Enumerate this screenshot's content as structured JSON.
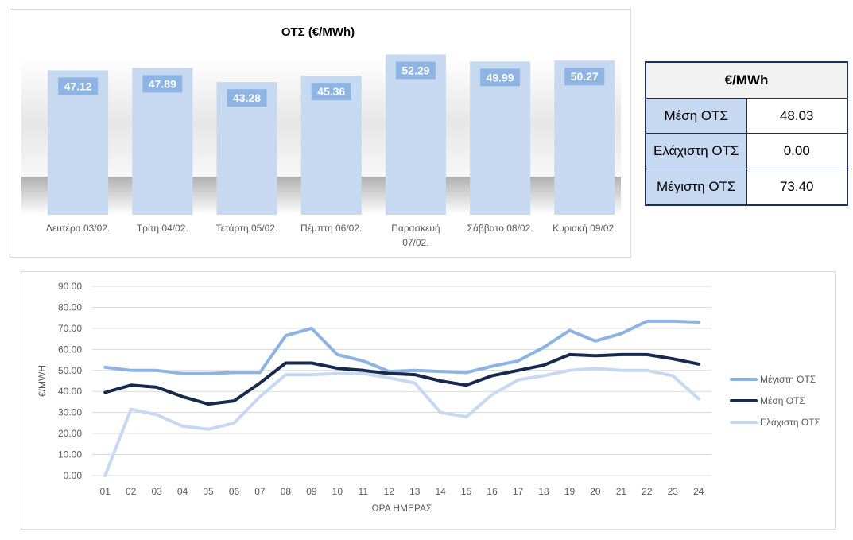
{
  "chart_data": [
    {
      "type": "bar",
      "title": "ΟΤΣ (€/MWh)",
      "categories": [
        "Δευτέρα 03/02.",
        "Τρίτη 04/02.",
        "Τετάρτη 05/02.",
        "Πέμπτη 06/02.",
        "Παρασκευή 07/02.",
        "Σάββατο 08/02.",
        "Κυριακή 09/02."
      ],
      "values": [
        47.12,
        47.89,
        43.28,
        45.36,
        52.29,
        49.99,
        50.27
      ],
      "value_labels": [
        "47.12",
        "47.89",
        "43.28",
        "45.36",
        "52.29",
        "49.99",
        "50.27"
      ],
      "ylim": [
        0,
        55
      ],
      "colors": {
        "bar": "#c6d9f1",
        "label_bg": "#8eb4e3",
        "label_text": "#ffffff"
      }
    },
    {
      "type": "line",
      "xlabel": "ΩΡΑ ΗΜΕΡΑΣ",
      "ylabel": "€/MWH",
      "x": [
        "01",
        "02",
        "03",
        "04",
        "05",
        "06",
        "07",
        "08",
        "09",
        "10",
        "11",
        "12",
        "13",
        "14",
        "15",
        "16",
        "17",
        "18",
        "19",
        "20",
        "21",
        "22",
        "23",
        "24"
      ],
      "ylim": [
        0,
        90
      ],
      "yticks": [
        "0.00",
        "10.00",
        "20.00",
        "30.00",
        "40.00",
        "50.00",
        "60.00",
        "70.00",
        "80.00",
        "90.00"
      ],
      "grid": true,
      "legend_position": "right",
      "series": [
        {
          "name": "Μέγιστη ΟΤΣ",
          "color": "#8db3e2",
          "values": [
            51.5,
            50,
            50,
            48.5,
            48.5,
            49,
            49,
            66.5,
            70,
            57.5,
            54.5,
            49.5,
            50,
            49.5,
            49,
            52,
            54.5,
            61,
            69,
            64,
            67.5,
            73.4,
            73.4,
            73
          ]
        },
        {
          "name": "Μέση ΟΤΣ",
          "color": "#17294d",
          "values": [
            39.5,
            43,
            42,
            37.5,
            34,
            35.5,
            44,
            53.5,
            53.5,
            51,
            50,
            48.5,
            48,
            45,
            43,
            47.5,
            50,
            52.5,
            57.5,
            57,
            57.5,
            57.5,
            55.5,
            53
          ]
        },
        {
          "name": "Ελάχιστη ΟΤΣ",
          "color": "#c6d9f1",
          "values": [
            0,
            31.5,
            29,
            23.5,
            22,
            25,
            37.5,
            48,
            48,
            48.5,
            48.5,
            46.5,
            44,
            30,
            28,
            38.5,
            45.5,
            47.5,
            50,
            51,
            50,
            50,
            47.5,
            36.5
          ]
        }
      ]
    }
  ],
  "stats_table": {
    "header": "€/MWh",
    "rows": [
      {
        "label": "Μέση ΟΤΣ",
        "value": "48.03"
      },
      {
        "label": "Ελάχιστη ΟΤΣ",
        "value": "0.00"
      },
      {
        "label": "Μέγιστη ΟΤΣ",
        "value": "73.40"
      }
    ]
  }
}
